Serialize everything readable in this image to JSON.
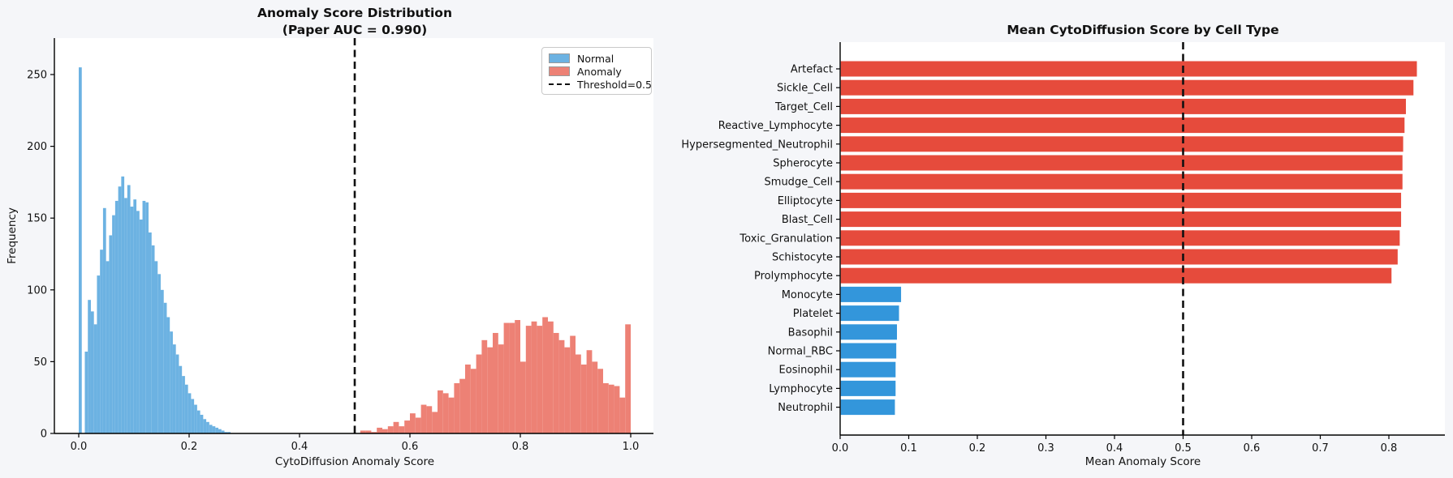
{
  "figure": {
    "background_color": "#f5f6f9",
    "plot_background_color": "#ffffff"
  },
  "chart_data": [
    {
      "type": "histogram",
      "title_line1": "Anomaly Score Distribution",
      "title_line2": "(Paper AUC = 0.990)",
      "xlabel": "CytoDiffusion Anomaly Score",
      "ylabel": "Frequency",
      "xlim": [
        -0.045,
        1.04
      ],
      "ylim": [
        0,
        275
      ],
      "xticks": [
        "0.0",
        "0.2",
        "0.4",
        "0.6",
        "0.8",
        "1.0"
      ],
      "xtick_values": [
        0,
        0.2,
        0.4,
        0.6,
        0.8,
        1.0
      ],
      "yticks": [
        "0",
        "50",
        "100",
        "150",
        "200",
        "250"
      ],
      "ytick_values": [
        0,
        50,
        100,
        150,
        200,
        250
      ],
      "threshold_value": 0.5,
      "legend": [
        {
          "label": "Normal",
          "type": "patch",
          "color": "#6cb2e2"
        },
        {
          "label": "Anomaly",
          "type": "patch",
          "color": "#ed8175"
        },
        {
          "label": "Threshold=0.5",
          "type": "dashed-line",
          "color": "#111111"
        }
      ],
      "series": [
        {
          "name": "Normal",
          "color": "#6cb2e2",
          "bin_start": 0.0,
          "bin_width": 0.0055,
          "counts": [
            255,
            0,
            57,
            93,
            85,
            76,
            110,
            128,
            157,
            120,
            138,
            152,
            162,
            172,
            179,
            164,
            173,
            158,
            163,
            155,
            149,
            162,
            161,
            140,
            131,
            120,
            111,
            100,
            91,
            81,
            71,
            62,
            55,
            47,
            40,
            34,
            28,
            24,
            20,
            16,
            13,
            10,
            8,
            6,
            5,
            4,
            3,
            2,
            1,
            1
          ]
        },
        {
          "name": "Anomaly",
          "color": "#ed8175",
          "bin_start": 0.5,
          "bin_width": 0.01,
          "counts": [
            0,
            2,
            2,
            1,
            4,
            3,
            5,
            8,
            5,
            9,
            14,
            11,
            20,
            19,
            15,
            30,
            28,
            25,
            35,
            38,
            48,
            45,
            55,
            65,
            60,
            70,
            62,
            77,
            77,
            79,
            50,
            75,
            78,
            75,
            81,
            78,
            70,
            65,
            60,
            68,
            55,
            48,
            58,
            50,
            45,
            35,
            34,
            33,
            25,
            76
          ]
        }
      ]
    },
    {
      "type": "bar",
      "orientation": "horizontal",
      "title": "Mean CytoDiffusion Score by Cell Type",
      "xlabel": "Mean Anomaly Score",
      "xlim": [
        0,
        0.88
      ],
      "xticks": [
        "0.0",
        "0.1",
        "0.2",
        "0.3",
        "0.4",
        "0.5",
        "0.6",
        "0.7",
        "0.8"
      ],
      "xtick_values": [
        0,
        0.1,
        0.2,
        0.3,
        0.4,
        0.5,
        0.6,
        0.7,
        0.8
      ],
      "threshold_value": 0.5,
      "anomalous_color": "#e64b3c",
      "normal_color": "#3396db",
      "bars": [
        {
          "label": "Artefact",
          "value": 0.84,
          "group": "anomalous"
        },
        {
          "label": "Sickle_Cell",
          "value": 0.835,
          "group": "anomalous"
        },
        {
          "label": "Target_Cell",
          "value": 0.824,
          "group": "anomalous"
        },
        {
          "label": "Reactive_Lymphocyte",
          "value": 0.822,
          "group": "anomalous"
        },
        {
          "label": "Hypersegmented_Neutrophil",
          "value": 0.82,
          "group": "anomalous"
        },
        {
          "label": "Spherocyte",
          "value": 0.819,
          "group": "anomalous"
        },
        {
          "label": "Smudge_Cell",
          "value": 0.819,
          "group": "anomalous"
        },
        {
          "label": "Elliptocyte",
          "value": 0.817,
          "group": "anomalous"
        },
        {
          "label": "Blast_Cell",
          "value": 0.817,
          "group": "anomalous"
        },
        {
          "label": "Toxic_Granulation",
          "value": 0.815,
          "group": "anomalous"
        },
        {
          "label": "Schistocyte",
          "value": 0.812,
          "group": "anomalous"
        },
        {
          "label": "Prolymphocyte",
          "value": 0.803,
          "group": "anomalous"
        },
        {
          "label": "Monocyte",
          "value": 0.088,
          "group": "normal"
        },
        {
          "label": "Platelet",
          "value": 0.085,
          "group": "normal"
        },
        {
          "label": "Basophil",
          "value": 0.082,
          "group": "normal"
        },
        {
          "label": "Normal_RBC",
          "value": 0.081,
          "group": "normal"
        },
        {
          "label": "Eosinophil",
          "value": 0.08,
          "group": "normal"
        },
        {
          "label": "Lymphocyte",
          "value": 0.08,
          "group": "normal"
        },
        {
          "label": "Neutrophil",
          "value": 0.079,
          "group": "normal"
        }
      ]
    }
  ]
}
